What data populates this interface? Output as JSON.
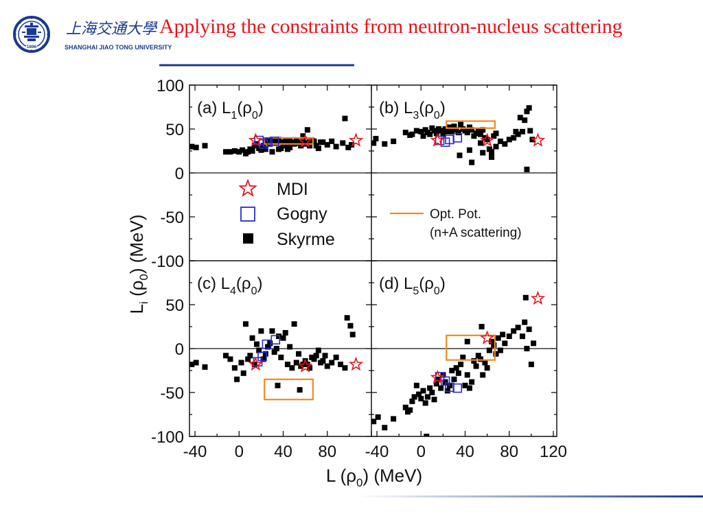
{
  "header": {
    "title": "Applying the constraints from neutron-nucleus scattering",
    "logo_cn": "上海交通大學",
    "logo_en": "SHANGHAI  JIAO TONG  UNIVERSITY",
    "logo_year": "1896"
  },
  "colors": {
    "title": "#e8141b",
    "brand": "#1a3a8f",
    "mdi": "#e8141b",
    "gogny": "#2a2ad0",
    "skyrme": "#000000",
    "optpot": "#f08a1c"
  },
  "chart_data": {
    "type": "scatter",
    "xlabel": "L (ρ0) (MeV)",
    "ylabel": "Li (ρ0) (MeV)",
    "left_xticks": [
      "-40",
      "0",
      "40",
      "80"
    ],
    "right_xticks": [
      "-40",
      "0",
      "40",
      "80",
      "120"
    ],
    "top_yticks": [
      "100",
      "50",
      "0",
      "-50",
      "-100"
    ],
    "bottom_yticks": [
      "50",
      "0",
      "-50",
      "-100"
    ],
    "xlim": [
      -45,
      120
    ],
    "ylim": [
      -100,
      100
    ],
    "legend": {
      "mdi": "MDI",
      "gogny": "Gogny",
      "skyrme": "Skyrme",
      "optpot_line1": "Opt. Pot.",
      "optpot_line2": "(n+A scattering)"
    },
    "panels": [
      {
        "id": "a",
        "label_prefix": "(a) L",
        "label_sub": "1",
        "label_mid": "(ρ",
        "label_sub2": "0",
        "label_end": ")",
        "mdi": [
          [
            15,
            37
          ],
          [
            60,
            36
          ],
          [
            106,
            37
          ]
        ],
        "gogny": [
          [
            18,
            37
          ],
          [
            22,
            33
          ],
          [
            26,
            35
          ],
          [
            32,
            36
          ]
        ],
        "opt_box": [
          23,
          67,
          33,
          40
        ],
        "skyrme": [
          [
            -43,
            30
          ],
          [
            -39,
            29
          ],
          [
            -31,
            31
          ],
          [
            -12,
            24
          ],
          [
            -8,
            24
          ],
          [
            -4,
            25
          ],
          [
            0,
            24
          ],
          [
            3,
            26
          ],
          [
            6,
            22
          ],
          [
            8,
            24
          ],
          [
            10,
            27
          ],
          [
            12,
            25
          ],
          [
            14,
            31
          ],
          [
            16,
            33
          ],
          [
            18,
            28
          ],
          [
            20,
            26
          ],
          [
            22,
            31
          ],
          [
            24,
            35
          ],
          [
            26,
            36
          ],
          [
            28,
            33
          ],
          [
            30,
            37
          ],
          [
            32,
            34
          ],
          [
            34,
            36
          ],
          [
            36,
            38
          ],
          [
            38,
            35
          ],
          [
            40,
            34
          ],
          [
            42,
            36
          ],
          [
            44,
            33
          ],
          [
            46,
            36
          ],
          [
            48,
            35
          ],
          [
            50,
            33
          ],
          [
            52,
            36
          ],
          [
            54,
            34
          ],
          [
            56,
            35
          ],
          [
            58,
            36
          ],
          [
            60,
            33
          ],
          [
            62,
            34
          ],
          [
            64,
            35
          ],
          [
            66,
            37
          ],
          [
            68,
            36
          ],
          [
            70,
            31
          ],
          [
            72,
            28
          ],
          [
            74,
            35
          ],
          [
            76,
            35
          ],
          [
            80,
            32
          ],
          [
            84,
            36
          ],
          [
            88,
            30
          ],
          [
            94,
            34
          ],
          [
            99,
            29
          ],
          [
            102,
            32
          ],
          [
            96,
            62
          ],
          [
            41,
            31
          ],
          [
            36,
            27
          ],
          [
            46,
            29
          ],
          [
            56,
            31
          ],
          [
            58,
            42
          ],
          [
            64,
            31
          ],
          [
            62,
            49
          ],
          [
            24,
            27
          ],
          [
            30,
            24
          ],
          [
            38,
            28
          ],
          [
            44,
            27
          ]
        ]
      },
      {
        "id": "b",
        "label_prefix": "(b) L",
        "label_sub": "3",
        "label_mid": "(ρ",
        "label_sub2": "0",
        "label_end": ")",
        "mdi": [
          [
            15,
            37
          ],
          [
            60,
            37
          ],
          [
            106,
            37
          ]
        ],
        "gogny": [
          [
            17,
            37
          ],
          [
            22,
            35
          ],
          [
            26,
            38
          ],
          [
            33,
            40
          ]
        ],
        "opt_box": [
          23,
          67,
          51,
          59
        ],
        "skyrme": [
          [
            -43,
            34
          ],
          [
            -41,
            39
          ],
          [
            -33,
            33
          ],
          [
            -25,
            36
          ],
          [
            -14,
            46
          ],
          [
            -10,
            43
          ],
          [
            -8,
            44
          ],
          [
            -4,
            48
          ],
          [
            0,
            47
          ],
          [
            2,
            42
          ],
          [
            4,
            49
          ],
          [
            6,
            46
          ],
          [
            8,
            44
          ],
          [
            10,
            51
          ],
          [
            12,
            48
          ],
          [
            14,
            45
          ],
          [
            16,
            50
          ],
          [
            18,
            48
          ],
          [
            20,
            44
          ],
          [
            22,
            50
          ],
          [
            24,
            47
          ],
          [
            26,
            52
          ],
          [
            28,
            47
          ],
          [
            30,
            53
          ],
          [
            32,
            49
          ],
          [
            34,
            46
          ],
          [
            36,
            55
          ],
          [
            38,
            50
          ],
          [
            40,
            48
          ],
          [
            42,
            46
          ],
          [
            44,
            52
          ],
          [
            46,
            49
          ],
          [
            48,
            42
          ],
          [
            50,
            45
          ],
          [
            52,
            48
          ],
          [
            54,
            44
          ],
          [
            56,
            49
          ],
          [
            58,
            40
          ],
          [
            60,
            38
          ],
          [
            62,
            27
          ],
          [
            64,
            18
          ],
          [
            66,
            42
          ],
          [
            68,
            45
          ],
          [
            72,
            36
          ],
          [
            76,
            33
          ],
          [
            80,
            38
          ],
          [
            84,
            40
          ],
          [
            86,
            47
          ],
          [
            88,
            44
          ],
          [
            90,
            63
          ],
          [
            92,
            47
          ],
          [
            94,
            60
          ],
          [
            96,
            70
          ],
          [
            98,
            74
          ],
          [
            99,
            48
          ],
          [
            101,
            38
          ],
          [
            96,
            4
          ],
          [
            46,
            12
          ],
          [
            35,
            20
          ],
          [
            44,
            26
          ],
          [
            56,
            23
          ],
          [
            64,
            24
          ],
          [
            68,
            30
          ],
          [
            54,
            34
          ]
        ]
      },
      {
        "id": "c",
        "label_prefix": "(c) L",
        "label_sub": "4",
        "label_mid": "(ρ",
        "label_sub2": "0",
        "label_end": ")",
        "mdi": [
          [
            15,
            -18
          ],
          [
            60,
            -20
          ],
          [
            106,
            -18
          ]
        ],
        "gogny": [
          [
            17,
            -15
          ],
          [
            21,
            -9
          ],
          [
            25,
            5
          ],
          [
            33,
            10
          ]
        ],
        "opt_box": [
          23,
          67,
          -58,
          -35
        ],
        "skyrme": [
          [
            -43,
            -18
          ],
          [
            -39,
            -16
          ],
          [
            -31,
            -21
          ],
          [
            -12,
            -8
          ],
          [
            -8,
            -12
          ],
          [
            -4,
            -22
          ],
          [
            -2,
            -35
          ],
          [
            2,
            -16
          ],
          [
            4,
            -28
          ],
          [
            6,
            28
          ],
          [
            8,
            -12
          ],
          [
            10,
            -8
          ],
          [
            12,
            12
          ],
          [
            14,
            -18
          ],
          [
            16,
            5
          ],
          [
            18,
            -2
          ],
          [
            20,
            20
          ],
          [
            22,
            -12
          ],
          [
            24,
            -6
          ],
          [
            26,
            2
          ],
          [
            28,
            6
          ],
          [
            30,
            20
          ],
          [
            32,
            -4
          ],
          [
            34,
            0
          ],
          [
            36,
            14
          ],
          [
            38,
            -10
          ],
          [
            40,
            12
          ],
          [
            42,
            18
          ],
          [
            44,
            -18
          ],
          [
            46,
            2
          ],
          [
            48,
            -22
          ],
          [
            50,
            28
          ],
          [
            52,
            -16
          ],
          [
            54,
            -6
          ],
          [
            56,
            -20
          ],
          [
            58,
            -18
          ],
          [
            60,
            -14
          ],
          [
            62,
            -18
          ],
          [
            64,
            -22
          ],
          [
            66,
            -10
          ],
          [
            68,
            -12
          ],
          [
            70,
            -8
          ],
          [
            72,
            -2
          ],
          [
            74,
            -16
          ],
          [
            76,
            -14
          ],
          [
            78,
            -8
          ],
          [
            80,
            -20
          ],
          [
            84,
            -16
          ],
          [
            88,
            -10
          ],
          [
            92,
            -18
          ],
          [
            96,
            -22
          ],
          [
            98,
            35
          ],
          [
            101,
            26
          ],
          [
            103,
            16
          ],
          [
            35,
            -42
          ],
          [
            55,
            -47
          ]
        ]
      },
      {
        "id": "d",
        "label_prefix": "(d) L",
        "label_sub": "5",
        "label_mid": "(ρ",
        "label_sub2": "0",
        "label_end": ")",
        "mdi": [
          [
            15,
            -33
          ],
          [
            60,
            12
          ],
          [
            106,
            57
          ]
        ],
        "gogny": [
          [
            17,
            -32
          ],
          [
            22,
            -37
          ],
          [
            26,
            -44
          ],
          [
            33,
            -45
          ]
        ],
        "opt_box": [
          23,
          67,
          -13,
          15
        ],
        "skyrme": [
          [
            -43,
            -83
          ],
          [
            -39,
            -78
          ],
          [
            -33,
            -90
          ],
          [
            -25,
            -80
          ],
          [
            -14,
            -67
          ],
          [
            -10,
            -70
          ],
          [
            -8,
            -60
          ],
          [
            -6,
            -55
          ],
          [
            -4,
            -42
          ],
          [
            -2,
            -52
          ],
          [
            0,
            -57
          ],
          [
            2,
            -48
          ],
          [
            4,
            -62
          ],
          [
            6,
            -55
          ],
          [
            8,
            -45
          ],
          [
            10,
            -50
          ],
          [
            12,
            -58
          ],
          [
            14,
            -40
          ],
          [
            16,
            -35
          ],
          [
            18,
            -45
          ],
          [
            20,
            -30
          ],
          [
            22,
            -38
          ],
          [
            24,
            -48
          ],
          [
            26,
            -42
          ],
          [
            28,
            -25
          ],
          [
            30,
            -35
          ],
          [
            32,
            -22
          ],
          [
            34,
            -28
          ],
          [
            36,
            -18
          ],
          [
            38,
            -10
          ],
          [
            40,
            -42
          ],
          [
            42,
            -30
          ],
          [
            44,
            -45
          ],
          [
            46,
            -38
          ],
          [
            48,
            -14
          ],
          [
            50,
            -20
          ],
          [
            52,
            -8
          ],
          [
            54,
            -12
          ],
          [
            56,
            -30
          ],
          [
            58,
            -16
          ],
          [
            60,
            -22
          ],
          [
            62,
            -2
          ],
          [
            64,
            8
          ],
          [
            66,
            4
          ],
          [
            68,
            -6
          ],
          [
            70,
            12
          ],
          [
            72,
            -2
          ],
          [
            74,
            16
          ],
          [
            76,
            6
          ],
          [
            80,
            14
          ],
          [
            84,
            20
          ],
          [
            88,
            24
          ],
          [
            92,
            14
          ],
          [
            94,
            30
          ],
          [
            96,
            0
          ],
          [
            98,
            22
          ],
          [
            100,
            -18
          ],
          [
            102,
            6
          ],
          [
            95,
            58
          ],
          [
            55,
            25
          ],
          [
            42,
            8
          ],
          [
            5,
            -100
          ],
          [
            -12,
            -72
          ]
        ]
      }
    ]
  }
}
